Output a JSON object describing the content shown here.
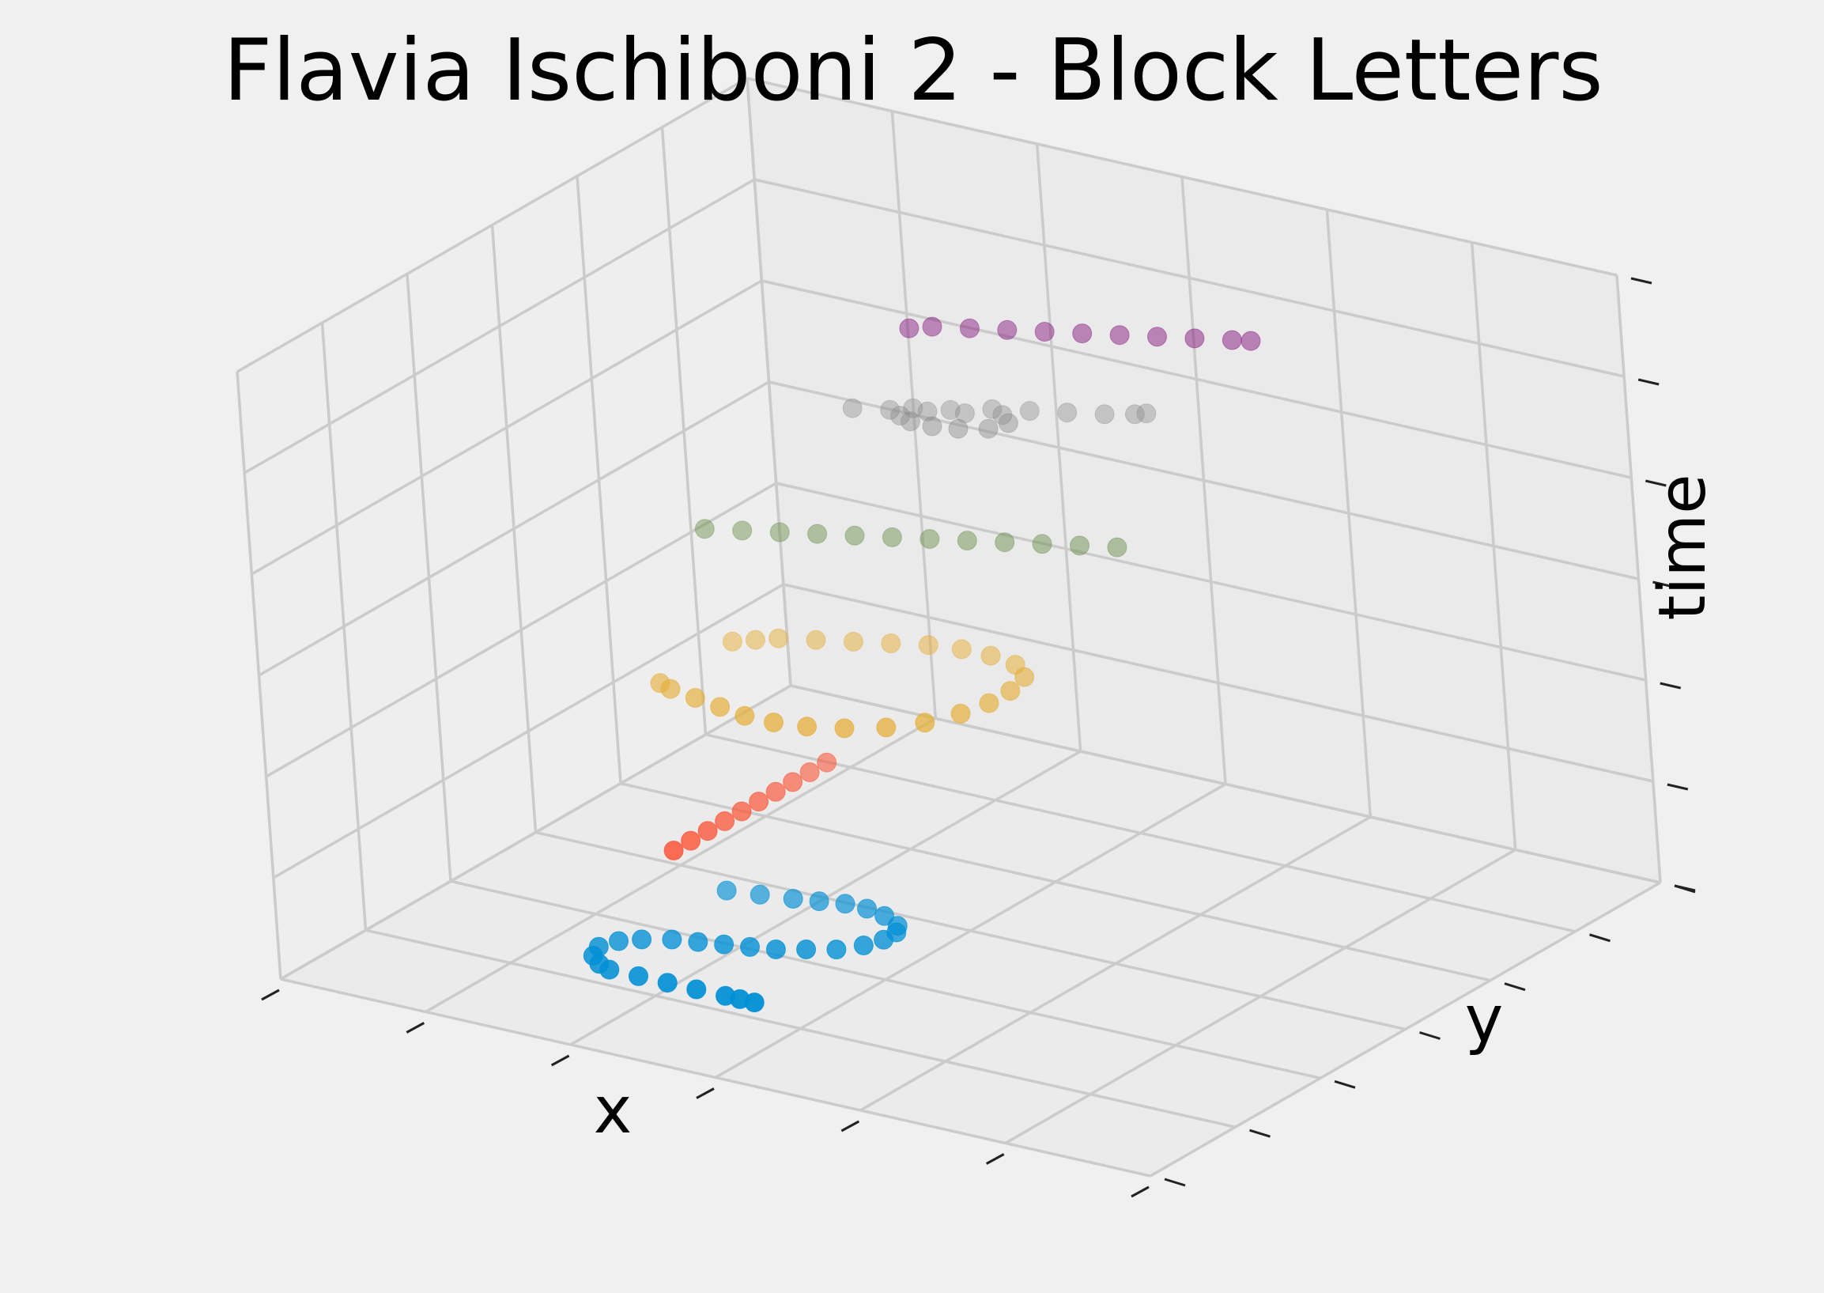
{
  "chart_data": {
    "type": "scatter",
    "projection": "3d",
    "title": "Flavia Ischiboni 2 - Block Letters",
    "xlabel": "x",
    "ylabel": "y",
    "zlabel": "time",
    "xlim": [
      0,
      6
    ],
    "ylim": [
      0,
      6
    ],
    "zlim": [
      0,
      6
    ],
    "grid": true,
    "tick_labels_shown": false,
    "series": [
      {
        "color": "#008fd5",
        "points": [
          [
            3.0,
            0.5,
            0.5
          ],
          [
            2.9,
            0.5,
            0.5
          ],
          [
            2.8,
            0.5,
            0.5
          ],
          [
            2.6,
            0.5,
            0.5
          ],
          [
            2.4,
            0.5,
            0.5
          ],
          [
            2.2,
            0.5,
            0.5
          ],
          [
            2.0,
            0.5,
            0.5
          ],
          [
            1.9,
            0.55,
            0.5
          ],
          [
            1.8,
            0.65,
            0.5
          ],
          [
            1.75,
            0.8,
            0.5
          ],
          [
            1.8,
            0.95,
            0.5
          ],
          [
            1.9,
            1.05,
            0.5
          ],
          [
            2.05,
            1.15,
            0.5
          ],
          [
            2.2,
            1.2,
            0.5
          ],
          [
            2.35,
            1.25,
            0.5
          ],
          [
            2.5,
            1.3,
            0.5
          ],
          [
            2.65,
            1.35,
            0.5
          ],
          [
            2.8,
            1.45,
            0.5
          ],
          [
            2.95,
            1.55,
            0.5
          ],
          [
            3.05,
            1.7,
            0.5
          ],
          [
            3.1,
            1.85,
            0.5
          ],
          [
            3.1,
            2.0,
            0.5
          ],
          [
            3.05,
            2.1,
            0.5
          ],
          [
            2.9,
            2.2,
            0.5
          ],
          [
            2.75,
            2.25,
            0.5
          ],
          [
            2.6,
            2.25,
            0.5
          ],
          [
            2.45,
            2.2,
            0.5
          ],
          [
            2.3,
            2.15,
            0.5
          ],
          [
            2.1,
            2.1,
            0.5
          ],
          [
            1.9,
            2.05,
            0.5
          ]
        ]
      },
      {
        "color": "#fc4f30",
        "points": [
          [
            2.2,
            2.8,
            1.5
          ],
          [
            2.2,
            2.6,
            1.5
          ],
          [
            2.2,
            2.4,
            1.5
          ],
          [
            2.2,
            2.2,
            1.5
          ],
          [
            2.2,
            2.0,
            1.5
          ],
          [
            2.2,
            1.8,
            1.5
          ],
          [
            2.2,
            1.6,
            1.5
          ],
          [
            2.2,
            1.4,
            1.5
          ],
          [
            2.2,
            1.2,
            1.5
          ],
          [
            2.2,
            1.0,
            1.5
          ]
        ]
      },
      {
        "color": "#e5ae38",
        "points": [
          [
            1.6,
            2.8,
            2.5
          ],
          [
            1.7,
            2.9,
            2.5
          ],
          [
            1.8,
            3.0,
            2.5
          ],
          [
            2.0,
            3.1,
            2.5
          ],
          [
            2.2,
            3.2,
            2.5
          ],
          [
            2.4,
            3.3,
            2.5
          ],
          [
            2.6,
            3.4,
            2.5
          ],
          [
            2.8,
            3.45,
            2.5
          ],
          [
            3.0,
            3.45,
            2.5
          ],
          [
            3.2,
            3.4,
            2.5
          ],
          [
            3.35,
            3.25,
            2.5
          ],
          [
            3.4,
            3.0,
            2.5
          ],
          [
            3.4,
            2.75,
            2.5
          ],
          [
            3.35,
            2.5,
            2.5
          ],
          [
            3.25,
            2.25,
            2.5
          ],
          [
            3.1,
            2.05,
            2.5
          ],
          [
            2.9,
            1.9,
            2.5
          ],
          [
            2.7,
            1.8,
            2.5
          ],
          [
            2.5,
            1.75,
            2.5
          ],
          [
            2.3,
            1.75,
            2.5
          ],
          [
            2.1,
            1.8,
            2.5
          ],
          [
            1.9,
            1.85,
            2.5
          ],
          [
            1.7,
            1.9,
            2.5
          ],
          [
            1.6,
            1.95,
            2.5
          ]
        ]
      },
      {
        "color": "#6d904f",
        "points": [
          [
            1.4,
            2.9,
            3.5
          ],
          [
            1.6,
            3.0,
            3.5
          ],
          [
            1.8,
            3.1,
            3.5
          ],
          [
            2.0,
            3.2,
            3.5
          ],
          [
            2.2,
            3.3,
            3.5
          ],
          [
            2.4,
            3.4,
            3.5
          ],
          [
            2.6,
            3.5,
            3.5
          ],
          [
            2.8,
            3.6,
            3.5
          ],
          [
            3.0,
            3.7,
            3.5
          ],
          [
            3.2,
            3.8,
            3.5
          ],
          [
            3.4,
            3.9,
            3.5
          ],
          [
            3.6,
            4.0,
            3.5
          ]
        ]
      },
      {
        "color": "#8b8b8b",
        "points": [
          [
            2.0,
            3.7,
            4.5
          ],
          [
            2.2,
            3.8,
            4.5
          ],
          [
            2.4,
            3.9,
            4.5
          ],
          [
            2.6,
            4.0,
            4.5
          ],
          [
            2.8,
            4.1,
            4.5
          ],
          [
            2.9,
            4.0,
            4.5
          ],
          [
            2.85,
            3.85,
            4.5
          ],
          [
            2.7,
            3.75,
            4.5
          ],
          [
            2.55,
            3.7,
            4.5
          ],
          [
            2.4,
            3.7,
            4.5
          ],
          [
            2.3,
            3.75,
            4.5
          ],
          [
            2.3,
            3.9,
            4.5
          ],
          [
            2.5,
            4.0,
            4.5
          ],
          [
            2.7,
            4.15,
            4.5
          ],
          [
            2.9,
            4.25,
            4.5
          ],
          [
            3.1,
            4.35,
            4.5
          ],
          [
            3.3,
            4.45,
            4.5
          ],
          [
            3.45,
            4.55,
            4.5
          ],
          [
            3.5,
            4.6,
            4.5
          ]
        ]
      },
      {
        "color": "#810f7c",
        "points": [
          [
            2.5,
            3.6,
            5.5
          ],
          [
            2.6,
            3.7,
            5.5
          ],
          [
            2.8,
            3.8,
            5.5
          ],
          [
            3.0,
            3.9,
            5.5
          ],
          [
            3.2,
            4.0,
            5.5
          ],
          [
            3.4,
            4.1,
            5.5
          ],
          [
            3.6,
            4.2,
            5.5
          ],
          [
            3.8,
            4.3,
            5.5
          ],
          [
            4.0,
            4.4,
            5.5
          ],
          [
            4.2,
            4.5,
            5.5
          ],
          [
            4.3,
            4.55,
            5.5
          ]
        ]
      }
    ]
  }
}
